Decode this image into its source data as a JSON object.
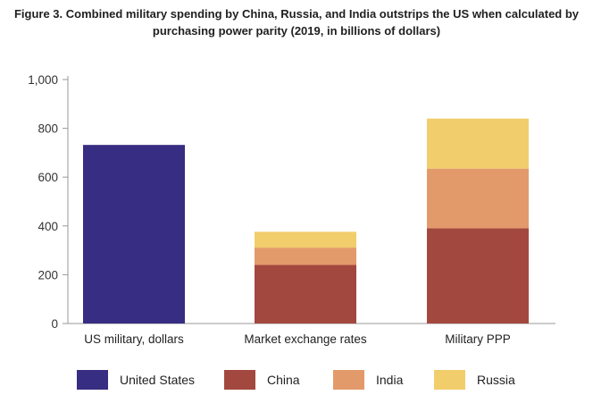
{
  "title": {
    "line1": "Figure 3. Combined military spending by China, Russia, and India outstrips the US when calculated by",
    "line2": "purchasing power parity (2019, in billions of dollars)"
  },
  "chart_data": {
    "type": "bar",
    "stacked": true,
    "title": "Figure 3. Combined military spending by China, Russia, and India outstrips the US when calculated by purchasing power parity (2019, in billions of dollars)",
    "categories": [
      "US military, dollars",
      "Market exchange rates",
      "Military PPP"
    ],
    "series": [
      {
        "name": "United States",
        "color": "#372d82",
        "values": [
          732,
          0,
          0
        ]
      },
      {
        "name": "China",
        "color": "#a3483f",
        "values": [
          0,
          240,
          390
        ]
      },
      {
        "name": "India",
        "color": "#e39a6b",
        "values": [
          0,
          71,
          245
        ]
      },
      {
        "name": "Russia",
        "color": "#f2cd6c",
        "values": [
          0,
          65,
          205
        ]
      }
    ],
    "ylim": [
      0,
      1000
    ],
    "yticks": [
      0,
      200,
      400,
      600,
      800,
      1000
    ],
    "ytick_labels": [
      "0",
      "200",
      "400",
      "600",
      "800",
      "1,000"
    ],
    "grid": false,
    "legend": "bottom"
  }
}
